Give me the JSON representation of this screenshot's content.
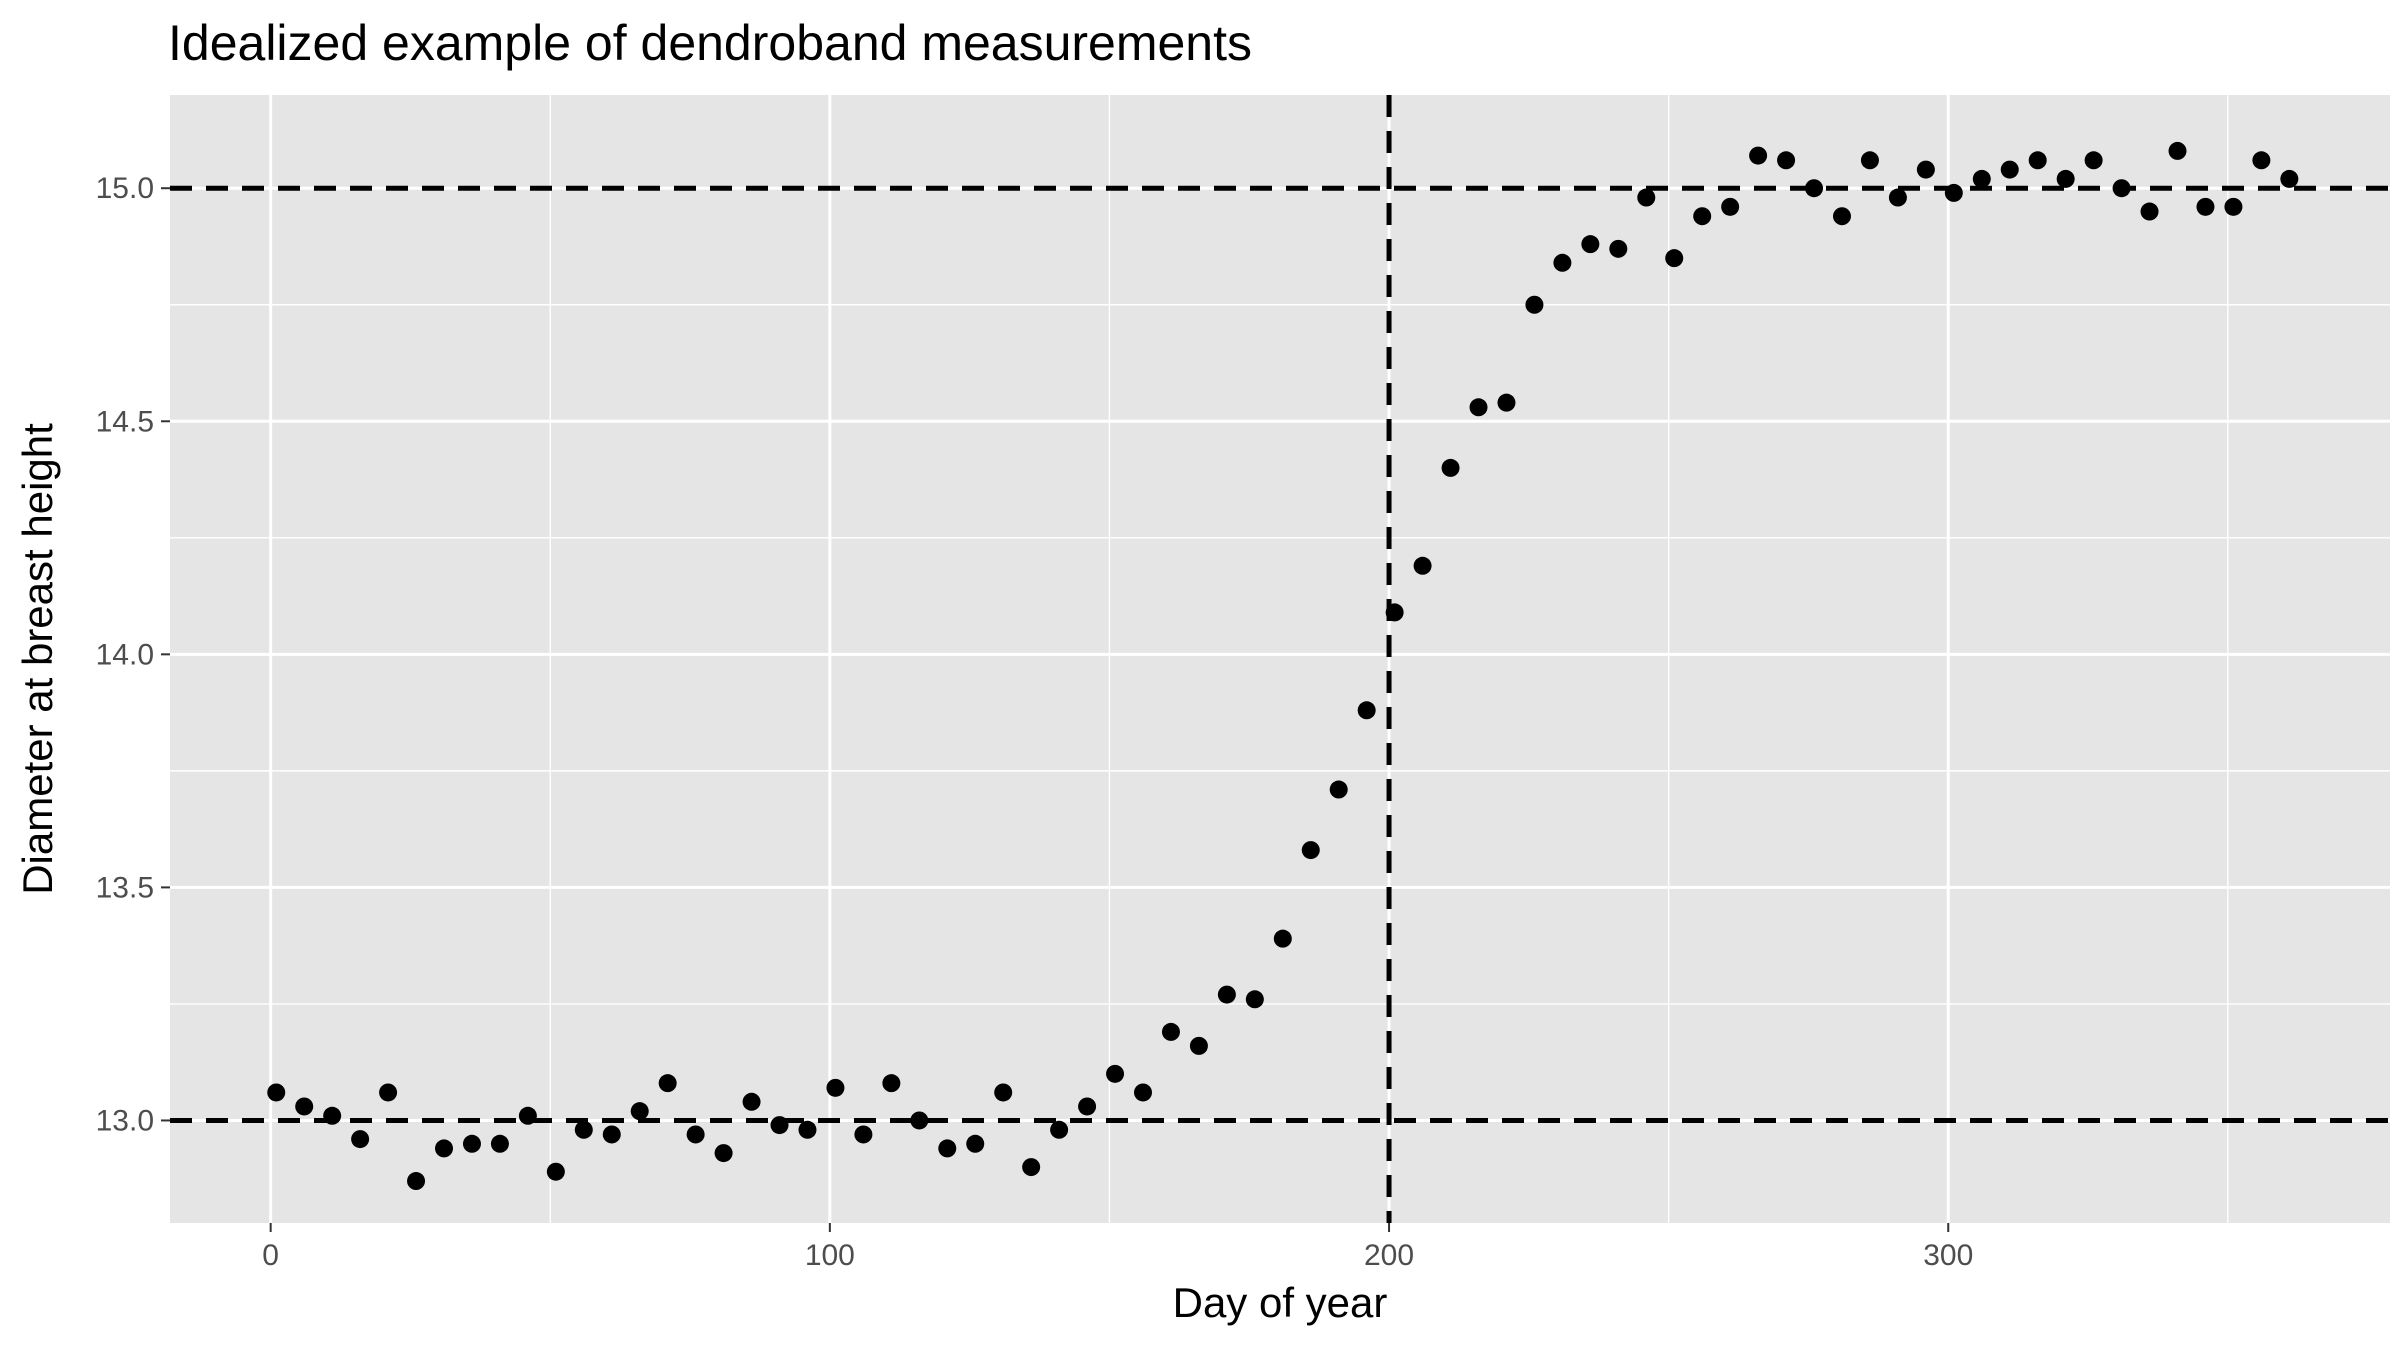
{
  "chart_data": {
    "type": "scatter",
    "title": "Idealized example of dendroband measurements",
    "xlabel": "Day of year",
    "ylabel": "Diameter at breast height",
    "xlim": [
      -18,
      379
    ],
    "ylim": [
      12.78,
      15.2
    ],
    "x_ticks": [
      {
        "value": 0,
        "label": "0"
      },
      {
        "value": 100,
        "label": "100"
      },
      {
        "value": 200,
        "label": "200"
      },
      {
        "value": 300,
        "label": "300"
      }
    ],
    "y_ticks": [
      {
        "value": 13.0,
        "label": "13.0"
      },
      {
        "value": 13.5,
        "label": "13.5"
      },
      {
        "value": 14.0,
        "label": "14.0"
      },
      {
        "value": 14.5,
        "label": "14.5"
      },
      {
        "value": 15.0,
        "label": "15.0"
      }
    ],
    "grid": true,
    "reference_lines": {
      "horizontal": [
        13.0,
        15.0
      ],
      "vertical": [
        200
      ],
      "style": "dashed"
    },
    "colors": {
      "panel_background": "#e5e5e5",
      "gridline": "#ffffff",
      "point": "#000000",
      "reference_line": "#000000"
    },
    "x": [
      1,
      6,
      11,
      16,
      21,
      26,
      31,
      36,
      41,
      46,
      51,
      56,
      61,
      66,
      71,
      76,
      81,
      86,
      91,
      96,
      101,
      106,
      111,
      116,
      121,
      126,
      131,
      136,
      141,
      146,
      151,
      156,
      161,
      166,
      171,
      176,
      181,
      186,
      191,
      196,
      201,
      206,
      211,
      216,
      221,
      226,
      231,
      236,
      241,
      246,
      251,
      256,
      261,
      266,
      271,
      276,
      281,
      286,
      291,
      296,
      301,
      306,
      311,
      316,
      321,
      326,
      331,
      336,
      341,
      346,
      351,
      356,
      361
    ],
    "y": [
      13.06,
      13.03,
      13.01,
      12.96,
      13.06,
      12.87,
      12.94,
      12.95,
      12.95,
      13.01,
      12.89,
      12.98,
      12.97,
      13.02,
      13.08,
      12.97,
      12.93,
      13.04,
      12.99,
      12.98,
      13.07,
      12.97,
      13.08,
      13.0,
      12.94,
      12.95,
      13.06,
      12.9,
      12.98,
      13.03,
      13.1,
      13.06,
      13.19,
      13.16,
      13.27,
      13.26,
      13.39,
      13.58,
      13.71,
      13.88,
      14.09,
      14.19,
      14.4,
      14.53,
      14.54,
      14.75,
      14.84,
      14.88,
      14.87,
      14.98,
      14.85,
      14.94,
      14.96,
      15.07,
      15.06,
      15.0,
      14.94,
      15.06,
      14.98,
      15.04,
      14.99,
      15.02,
      15.04,
      15.06,
      15.02,
      15.06,
      15.0,
      14.95,
      15.08,
      14.96,
      14.96,
      15.06,
      15.02
    ]
  }
}
